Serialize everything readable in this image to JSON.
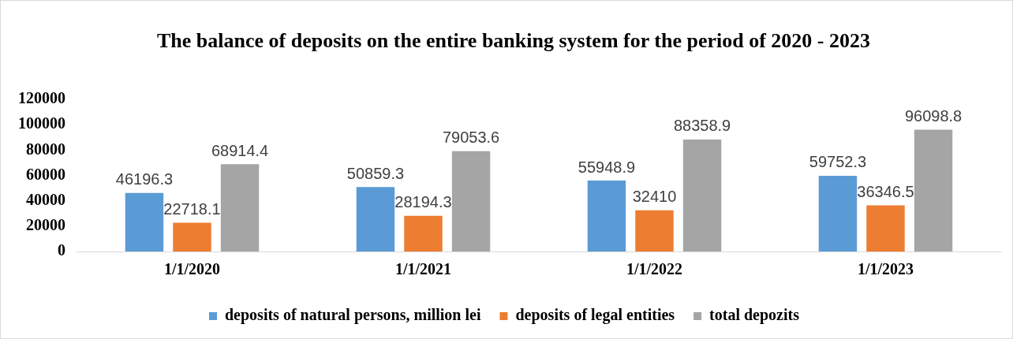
{
  "chart_data": {
    "type": "bar",
    "title": "The balance of deposits on the entire banking system for the period of 2020 - 2023",
    "categories": [
      "1/1/2020",
      "1/1/2021",
      "1/1/2022",
      "1/1/2023"
    ],
    "series": [
      {
        "name": "deposits of natural persons, million lei",
        "color": "#5b9bd5",
        "values": [
          46196.3,
          50859.3,
          55948.9,
          59752.3
        ]
      },
      {
        "name": "deposits of legal entities",
        "color": "#ed7d31",
        "values": [
          22718.1,
          28194.3,
          32410,
          36346.5
        ]
      },
      {
        "name": "total depozits",
        "color": "#a5a5a5",
        "values": [
          68914.4,
          79053.6,
          88358.9,
          96098.8
        ]
      }
    ],
    "ylim": [
      0,
      120000
    ],
    "yticks": [
      0,
      20000,
      40000,
      60000,
      80000,
      100000,
      120000
    ],
    "data_labels": true,
    "legend": "bottom"
  }
}
